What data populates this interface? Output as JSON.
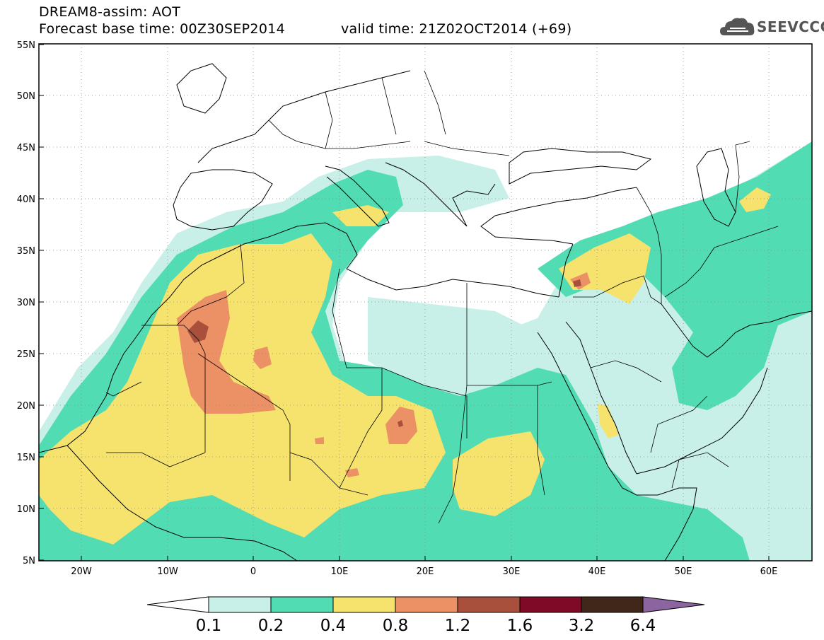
{
  "title": {
    "line1": "DREAM8-assim: AOT",
    "base_time": "Forecast base time: 00Z30SEP2014",
    "valid_time": "valid time: 21Z02OCT2014 (+69)"
  },
  "logo": {
    "text": "SEEVCCC",
    "icon": "cloud-icon",
    "color": "#555555"
  },
  "map": {
    "lon_range": [
      -25,
      65
    ],
    "lat_range": [
      5,
      55
    ],
    "grid": "dotted",
    "lat_labels": [
      "5N",
      "10N",
      "15N",
      "20N",
      "25N",
      "30N",
      "35N",
      "40N",
      "45N",
      "50N",
      "55N"
    ],
    "lon_labels": [
      "20W",
      "10W",
      "0",
      "10E",
      "20E",
      "30E",
      "40E",
      "50E",
      "60E"
    ]
  },
  "colorbar": {
    "bins": [
      {
        "color": "#c8f0e8"
      },
      {
        "color": "#52dcb4"
      },
      {
        "color": "#f5e36e"
      },
      {
        "color": "#ec9066"
      },
      {
        "color": "#a8503c"
      },
      {
        "color": "#7e0a28"
      },
      {
        "color": "#40271a"
      }
    ],
    "under_color": "#ffffff",
    "over_color": "#8c64a0",
    "labels": [
      "0.1",
      "0.2",
      "0.4",
      "0.8",
      "1.2",
      "1.6",
      "3.2",
      "6.4"
    ]
  }
}
